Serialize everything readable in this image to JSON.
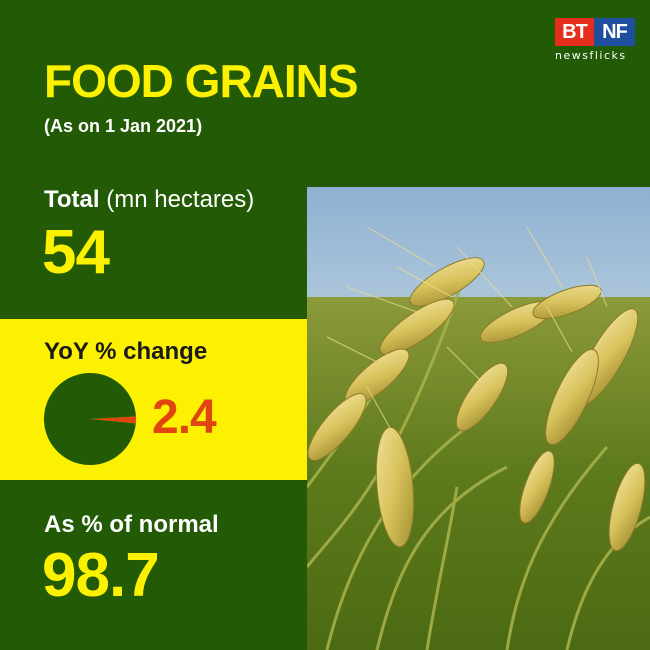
{
  "brand": {
    "logo_left": "BT",
    "logo_right": "NF",
    "tagline": "newsflicks"
  },
  "header": {
    "title": "FOOD GRAINS",
    "subtitle": "(As on 1 Jan 2021)"
  },
  "total": {
    "label": "Total",
    "unit": "(mn hectares)",
    "value": "54"
  },
  "yoy": {
    "label": "YoY % change",
    "value": "2.4"
  },
  "normal": {
    "label": "As % of normal",
    "value": "98.7"
  },
  "colors": {
    "background": "#225a05",
    "accent_yellow": "#fcf100",
    "pie_base": "#225a05",
    "pie_slice": "#e0450f"
  },
  "chart_data": {
    "type": "pie",
    "title": "YoY % change",
    "slices": [
      {
        "label": "",
        "value": 2.4,
        "color": "#e0450f"
      },
      {
        "label": "",
        "value": 97.6,
        "color": "#225a05"
      }
    ]
  }
}
